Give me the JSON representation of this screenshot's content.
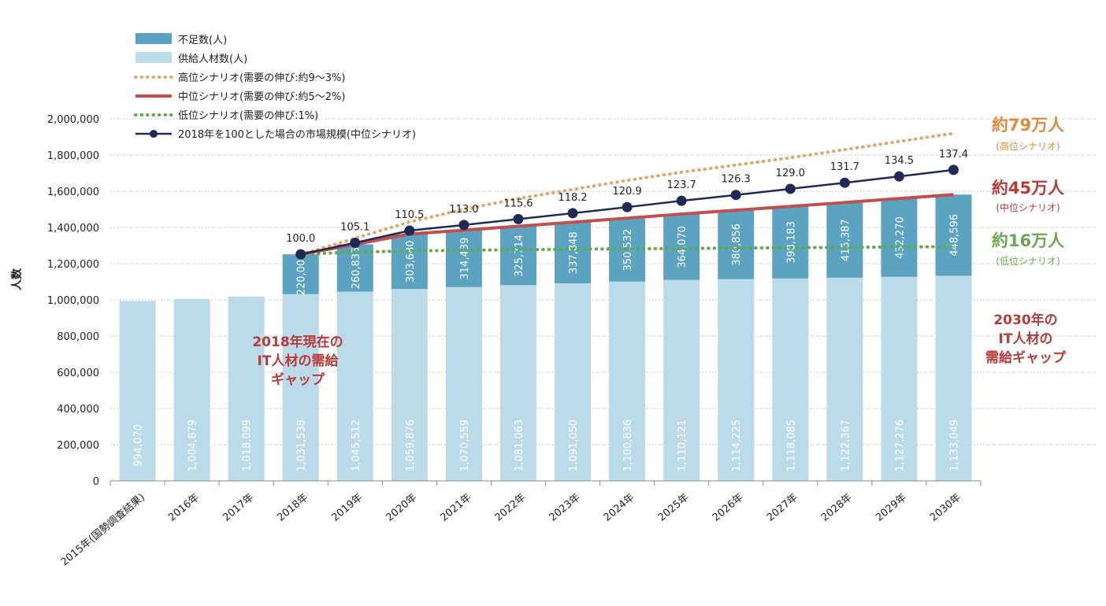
{
  "chart_data": {
    "type": "bar",
    "stacked": true,
    "ylabel": "人数",
    "ylim": [
      0,
      2000000
    ],
    "ytick_step": 200000,
    "ytick_labels": [
      "0",
      "200,000",
      "400,000",
      "600,000",
      "800,000",
      "1,000,000",
      "1,200,000",
      "1,400,000",
      "1,600,000",
      "1,800,000",
      "2,000,000"
    ],
    "grid": true,
    "legend_position": "top-left",
    "categories": [
      "2015年(国勢調査結果)",
      "2016年",
      "2017年",
      "2018年",
      "2019年",
      "2020年",
      "2021年",
      "2022年",
      "2023年",
      "2024年",
      "2025年",
      "2026年",
      "2027年",
      "2028年",
      "2029年",
      "2030年"
    ],
    "series": [
      {
        "name": "供給人材数(人)",
        "color": "#bcdbe9",
        "values": [
          994070,
          1004879,
          1018099,
          1031538,
          1045512,
          1059876,
          1070559,
          1081063,
          1091050,
          1100836,
          1110121,
          1114225,
          1118085,
          1122367,
          1127276,
          1133049
        ],
        "labels": [
          "994,070",
          "1,004,879",
          "1,018,099",
          "1,031,538",
          "1,045,512",
          "1,059,876",
          "1,070,559",
          "1,081,063",
          "1,091,050",
          "1,100,836",
          "1,110,121",
          "1,114,225",
          "1,118,085",
          "1,122,367",
          "1,127,276",
          "1,133,049"
        ]
      },
      {
        "name": "不足数(人)",
        "color": "#5ba3c1",
        "values": [
          null,
          null,
          null,
          220000,
          260835,
          303680,
          314439,
          325714,
          337848,
          350532,
          364070,
          380856,
          398183,
          415387,
          432270,
          448596
        ],
        "labels": [
          "",
          "",
          "",
          "220,000",
          "260,835",
          "303,680",
          "314,439",
          "325,714",
          "337,848",
          "350,532",
          "364,070",
          "380,856",
          "398,183",
          "415,387",
          "432,270",
          "448,596"
        ]
      },
      {
        "name": "高位シナリオ(需要の伸び:約9〜3%)",
        "type": "line",
        "style": "dotted",
        "color": "#e8a364",
        "start_index": 3,
        "values": [
          null,
          null,
          null,
          1251538,
          1340000,
          1430000,
          1500000,
          1560000,
          1610000,
          1660000,
          1705000,
          1745000,
          1785000,
          1830000,
          1875000,
          1920000
        ]
      },
      {
        "name": "中位シナリオ(需要の伸び:約5〜2%)",
        "type": "line",
        "style": "solid",
        "color": "#c0504d",
        "start_index": 3,
        "values": [
          null,
          null,
          null,
          1251538,
          1306347,
          1363556,
          1384998,
          1406777,
          1428898,
          1451368,
          1474191,
          1495081,
          1516268,
          1537754,
          1559546,
          1581645
        ]
      },
      {
        "name": "低位シナリオ(需要の伸び:1%)",
        "type": "line",
        "style": "dotted",
        "color": "#5cad4a",
        "start_index": 3,
        "values": [
          null,
          null,
          null,
          1251538,
          1264000,
          1270000,
          1274000,
          1277000,
          1280000,
          1282000,
          1284000,
          1286000,
          1288000,
          1290000,
          1292000,
          1294000
        ]
      },
      {
        "name": "2018年を100とした場合の市場規模(中位シナリオ)",
        "type": "line",
        "style": "solid-markers",
        "color": "#1f2a55",
        "start_index": 3,
        "values": [
          null,
          null,
          null,
          100.0,
          105.1,
          110.5,
          113.0,
          115.6,
          118.2,
          120.9,
          123.7,
          126.3,
          129.0,
          131.7,
          134.5,
          137.4
        ],
        "labels": [
          "",
          "",
          "",
          "100.0",
          "105.1",
          "110.5",
          "113.0",
          "115.6",
          "118.2",
          "120.9",
          "123.7",
          "126.3",
          "129.0",
          "131.7",
          "134.5",
          "137.4"
        ]
      }
    ],
    "annotations": {
      "high": {
        "main": "約79万人",
        "sub": "(高位シナリオ)",
        "color": "#e08a3c"
      },
      "mid": {
        "main": "約45万人",
        "sub": "(中位シナリオ)",
        "color": "#b83a3a"
      },
      "low": {
        "main": "約16万人",
        "sub": "(低位シナリオ)",
        "color": "#6aa84f"
      },
      "gap2018": [
        "2018年現在の",
        "IT人材の需給",
        "ギャップ"
      ],
      "gap2030": [
        "2030年の",
        "IT人材の",
        "需給ギャップ"
      ]
    }
  }
}
